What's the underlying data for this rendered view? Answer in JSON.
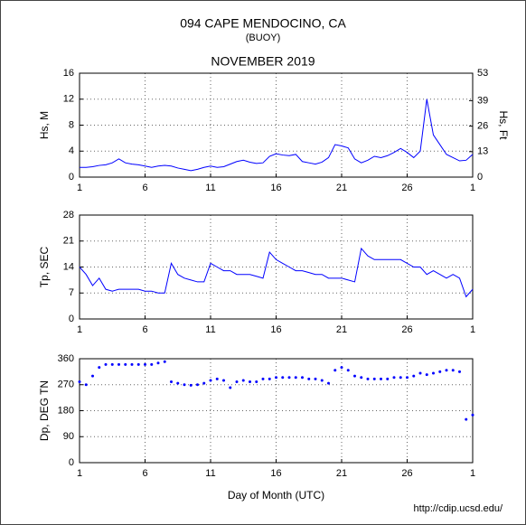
{
  "header": {
    "title": "094 CAPE MENDOCINO, CA",
    "subtitle": "(BUOY)",
    "period": "NOVEMBER 2019"
  },
  "footer": {
    "url": "http://cdip.ucsd.edu/"
  },
  "chart_data": [
    {
      "type": "line",
      "y_label": "Hs, M",
      "y2_label": "Hs, Ft",
      "color": "#0000ff",
      "grid": true,
      "x": [
        1,
        1.5,
        2,
        2.5,
        3,
        3.5,
        4,
        4.5,
        5,
        5.5,
        6,
        6.5,
        7,
        7.5,
        8,
        8.5,
        9,
        9.5,
        10,
        10.5,
        11,
        11.5,
        12,
        12.5,
        13,
        13.5,
        14,
        14.5,
        15,
        15.5,
        16,
        16.5,
        17,
        17.5,
        18,
        18.5,
        19,
        19.5,
        20,
        20.5,
        21,
        21.5,
        22,
        22.5,
        23,
        23.5,
        24,
        24.5,
        25,
        25.5,
        26,
        26.5,
        27,
        27.5,
        28,
        28.5,
        29,
        29.5,
        30,
        30.5,
        31
      ],
      "values": [
        1.5,
        1.5,
        1.6,
        1.8,
        1.9,
        2.2,
        2.8,
        2.2,
        2.0,
        1.9,
        1.7,
        1.5,
        1.7,
        1.8,
        1.7,
        1.4,
        1.2,
        1.0,
        1.2,
        1.5,
        1.7,
        1.5,
        1.6,
        2.0,
        2.4,
        2.6,
        2.3,
        2.1,
        2.2,
        3.2,
        3.6,
        3.4,
        3.3,
        3.5,
        2.4,
        2.2,
        2.0,
        2.3,
        3.0,
        5.0,
        4.8,
        4.5,
        2.8,
        2.2,
        2.6,
        3.2,
        3.0,
        3.3,
        3.8,
        4.4,
        3.8,
        3.0,
        4.0,
        12.0,
        6.5,
        5.0,
        3.5,
        3.0,
        2.5,
        2.6,
        3.5
      ],
      "xlim": [
        1,
        31
      ],
      "xticks": [
        1,
        6,
        11,
        16,
        21,
        26,
        {
          "value": 31,
          "label": "1"
        }
      ],
      "ylim": [
        0,
        16
      ],
      "yticks": [
        0,
        4,
        8,
        12,
        16
      ],
      "y2lim": [
        0,
        53
      ],
      "y2ticks": [
        0,
        13,
        26,
        39,
        53
      ]
    },
    {
      "type": "line",
      "y_label": "Tp, SEC",
      "color": "#0000ff",
      "grid": true,
      "x": [
        1,
        1.5,
        2,
        2.5,
        3,
        3.5,
        4,
        4.5,
        5,
        5.5,
        6,
        6.5,
        7,
        7.5,
        8,
        8.5,
        9,
        9.5,
        10,
        10.5,
        11,
        11.5,
        12,
        12.5,
        13,
        13.5,
        14,
        14.5,
        15,
        15.5,
        16,
        16.5,
        17,
        17.5,
        18,
        18.5,
        19,
        19.5,
        20,
        20.5,
        21,
        21.5,
        22,
        22.5,
        23,
        23.5,
        24,
        24.5,
        25,
        25.5,
        26,
        26.5,
        27,
        27.5,
        28,
        28.5,
        29,
        29.5,
        30,
        30.5,
        31
      ],
      "values": [
        14,
        12,
        9,
        11,
        8,
        7.5,
        8,
        8,
        8,
        8,
        7.5,
        7.5,
        7,
        7,
        15,
        12,
        11,
        10.5,
        10,
        10,
        15,
        14,
        13,
        13,
        12,
        12,
        12,
        11.5,
        11,
        18,
        16,
        15,
        14,
        13,
        13,
        12.5,
        12,
        12,
        11,
        11,
        11,
        10.5,
        10,
        19,
        17,
        16,
        16,
        16,
        16,
        16,
        15,
        14,
        14,
        12,
        13,
        12,
        11,
        12,
        11,
        6,
        8
      ],
      "xlim": [
        1,
        31
      ],
      "xticks": [
        1,
        6,
        11,
        16,
        21,
        26,
        {
          "value": 31,
          "label": "1"
        }
      ],
      "ylim": [
        0,
        28
      ],
      "yticks": [
        0,
        7,
        14,
        21,
        28
      ]
    },
    {
      "type": "scatter",
      "y_label": "Dp, DEG TN",
      "x_label": "Day of Month (UTC)",
      "color": "#0000ff",
      "grid": true,
      "x": [
        1,
        1.5,
        2,
        2.5,
        3,
        3.5,
        4,
        4.5,
        5,
        5.5,
        6,
        6.5,
        7,
        7.5,
        8,
        8.5,
        9,
        9.5,
        10,
        10.5,
        11,
        11.5,
        12,
        12.5,
        13,
        13.5,
        14,
        14.5,
        15,
        15.5,
        16,
        16.5,
        17,
        17.5,
        18,
        18.5,
        19,
        19.5,
        20,
        20.5,
        21,
        21.5,
        22,
        22.5,
        23,
        23.5,
        24,
        24.5,
        25,
        25.5,
        26,
        26.5,
        27,
        27.5,
        28,
        28.5,
        29,
        29.5,
        30,
        30.5,
        31
      ],
      "values": [
        280,
        270,
        300,
        330,
        340,
        340,
        340,
        340,
        340,
        340,
        340,
        340,
        345,
        350,
        280,
        275,
        270,
        268,
        270,
        275,
        285,
        290,
        285,
        260,
        280,
        285,
        280,
        280,
        290,
        290,
        295,
        295,
        295,
        295,
        295,
        290,
        290,
        285,
        275,
        320,
        330,
        320,
        300,
        295,
        290,
        290,
        290,
        290,
        295,
        295,
        295,
        300,
        310,
        305,
        310,
        315,
        320,
        320,
        315,
        150,
        165
      ],
      "xlim": [
        1,
        31
      ],
      "xticks": [
        1,
        6,
        11,
        16,
        21,
        26,
        {
          "value": 31,
          "label": "1"
        }
      ],
      "ylim": [
        0,
        360
      ],
      "yticks": [
        0,
        90,
        180,
        270,
        360
      ]
    }
  ]
}
